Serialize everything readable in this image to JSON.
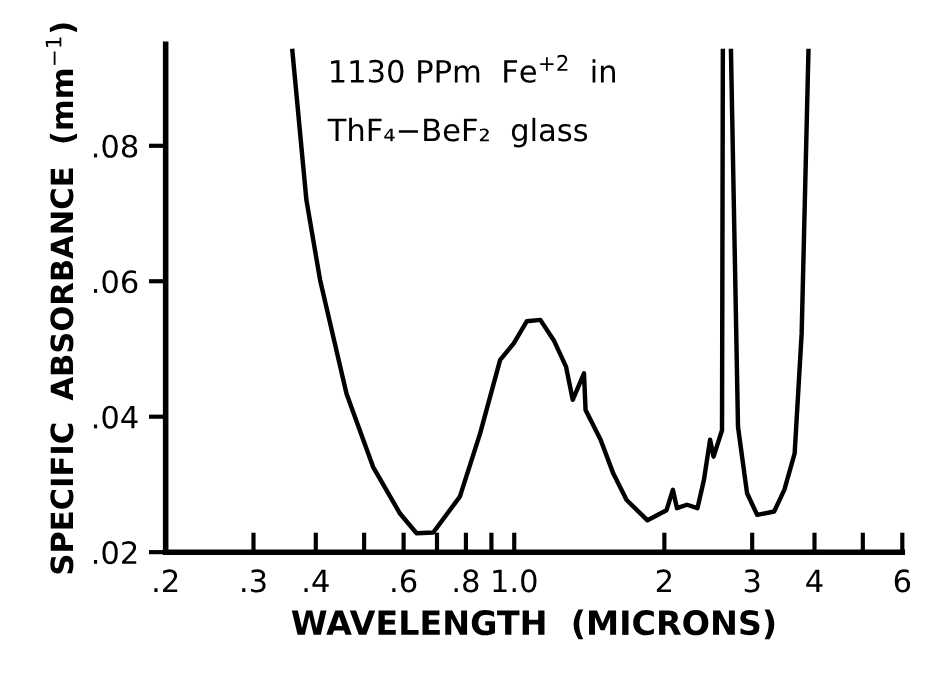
{
  "chart_data": {
    "type": "line",
    "xlabel": "WAVELENGTH  (MICRONS)",
    "ylabel": "SPECIFIC  ABSORBANCE  (mm$^{−1}$)",
    "annotations": [
      "1130 PPm  Fe$^{+2}$  in",
      "ThF₄−BeF₂  glass"
    ],
    "log": "x",
    "xlim": [
      0.2,
      6
    ],
    "ylim": [
      0.02,
      0.095
    ],
    "xticks": [
      {
        "value": 0.2,
        "label": ".2"
      },
      {
        "value": 0.3,
        "label": ".3"
      },
      {
        "value": 0.4,
        "label": ".4"
      },
      {
        "value": 0.5,
        "label": null
      },
      {
        "value": 0.6,
        "label": ".6"
      },
      {
        "value": 0.7,
        "label": null
      },
      {
        "value": 0.8,
        "label": ".8"
      },
      {
        "value": 0.9,
        "label": null
      },
      {
        "value": 1,
        "label": "1.0"
      },
      2,
      3,
      4,
      {
        "value": 5,
        "label": null
      },
      6
    ],
    "yticks": [
      {
        "value": 0.02,
        "label": ".02"
      },
      {
        "value": 0.04,
        "label": ".04"
      },
      {
        "value": 0.06,
        "label": ".06"
      },
      {
        "value": 0.08,
        "label": ".08"
      }
    ],
    "grid": false,
    "marker": "none",
    "line_style": "solid",
    "series": [
      {
        "color": "#000000",
        "x": [
          0.359,
          0.383,
          0.408,
          0.461,
          0.521,
          0.59,
          0.637,
          0.688,
          0.778,
          0.854,
          0.937,
          0.997,
          1.06,
          1.128,
          1.2,
          1.27,
          1.31,
          1.38,
          1.39,
          1.49,
          1.58,
          1.68,
          1.85,
          2.02,
          2.08,
          2.12,
          2.22,
          2.33,
          2.4,
          2.47,
          2.51,
          2.61,
          2.62,
          2.67,
          2.72,
          2.81,
          2.93,
          3.07,
          3.32,
          3.48,
          3.65,
          3.77,
          3.89
        ],
        "values": [
          0.094,
          0.072,
          0.0602,
          0.0434,
          0.0326,
          0.0257,
          0.0228,
          0.0229,
          0.0282,
          0.0375,
          0.0484,
          0.0508,
          0.0541,
          0.0543,
          0.0513,
          0.0474,
          0.0425,
          0.0464,
          0.041,
          0.0366,
          0.0316,
          0.0277,
          0.0247,
          0.0262,
          0.0292,
          0.0265,
          0.027,
          0.0265,
          0.0306,
          0.0366,
          0.0341,
          0.038,
          0.094,
          null,
          0.094,
          0.0385,
          0.0287,
          0.0255,
          0.026,
          0.0292,
          0.0346,
          0.0523,
          0.094
        ]
      }
    ]
  }
}
